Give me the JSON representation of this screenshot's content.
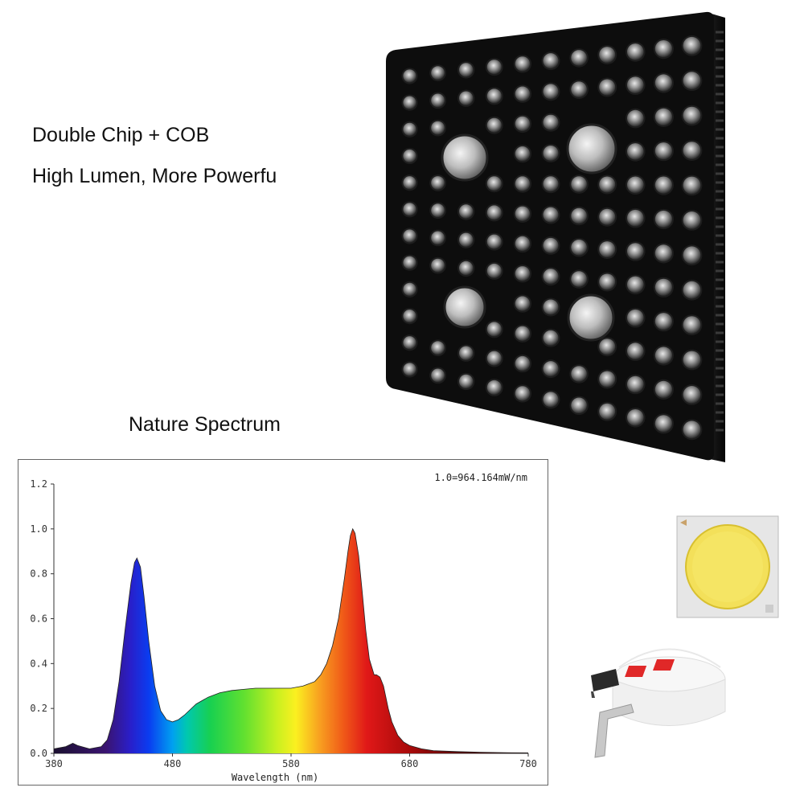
{
  "headline_1": "Double Chip + COB",
  "headline_2": "High Lumen, More Powerfu",
  "spectrum_caption": "Nature Spectrum",
  "chart_data": {
    "type": "area",
    "annotation": "1.0=964.164mW/nm",
    "xlabel": "Wavelength (nm)",
    "ylabel": "",
    "xlim": [
      380,
      780
    ],
    "ylim": [
      0,
      1.2
    ],
    "x_ticks": [
      "380",
      "480",
      "580",
      "680",
      "780"
    ],
    "y_ticks": [
      "0.0",
      "0.2",
      "0.4",
      "0.6",
      "0.8",
      "1.0",
      "1.2"
    ],
    "grid": false,
    "fill": "spectral rainbow gradient",
    "series": [
      {
        "x": [
          380,
          390,
          396,
          400,
          410,
          420,
          425,
          430,
          435,
          440,
          445,
          448,
          450,
          453,
          456,
          460,
          465,
          470,
          475,
          480,
          485,
          490,
          500,
          510,
          520,
          530,
          540,
          550,
          560,
          570,
          580,
          590,
          600,
          605,
          610,
          615,
          620,
          625,
          628,
          630,
          632,
          634,
          637,
          640,
          643,
          646,
          650,
          652,
          655,
          658,
          662,
          665,
          670,
          675,
          680,
          690,
          700,
          720,
          740,
          760,
          780
        ],
        "y": [
          0.02,
          0.03,
          0.045,
          0.035,
          0.02,
          0.03,
          0.06,
          0.15,
          0.32,
          0.55,
          0.76,
          0.85,
          0.87,
          0.83,
          0.7,
          0.5,
          0.3,
          0.19,
          0.15,
          0.14,
          0.15,
          0.17,
          0.22,
          0.25,
          0.27,
          0.28,
          0.285,
          0.29,
          0.29,
          0.29,
          0.29,
          0.3,
          0.32,
          0.35,
          0.4,
          0.48,
          0.6,
          0.78,
          0.9,
          0.97,
          1.0,
          0.98,
          0.88,
          0.72,
          0.55,
          0.42,
          0.35,
          0.35,
          0.34,
          0.3,
          0.2,
          0.14,
          0.08,
          0.05,
          0.035,
          0.02,
          0.012,
          0.008,
          0.005,
          0.003,
          0.002
        ]
      }
    ]
  }
}
